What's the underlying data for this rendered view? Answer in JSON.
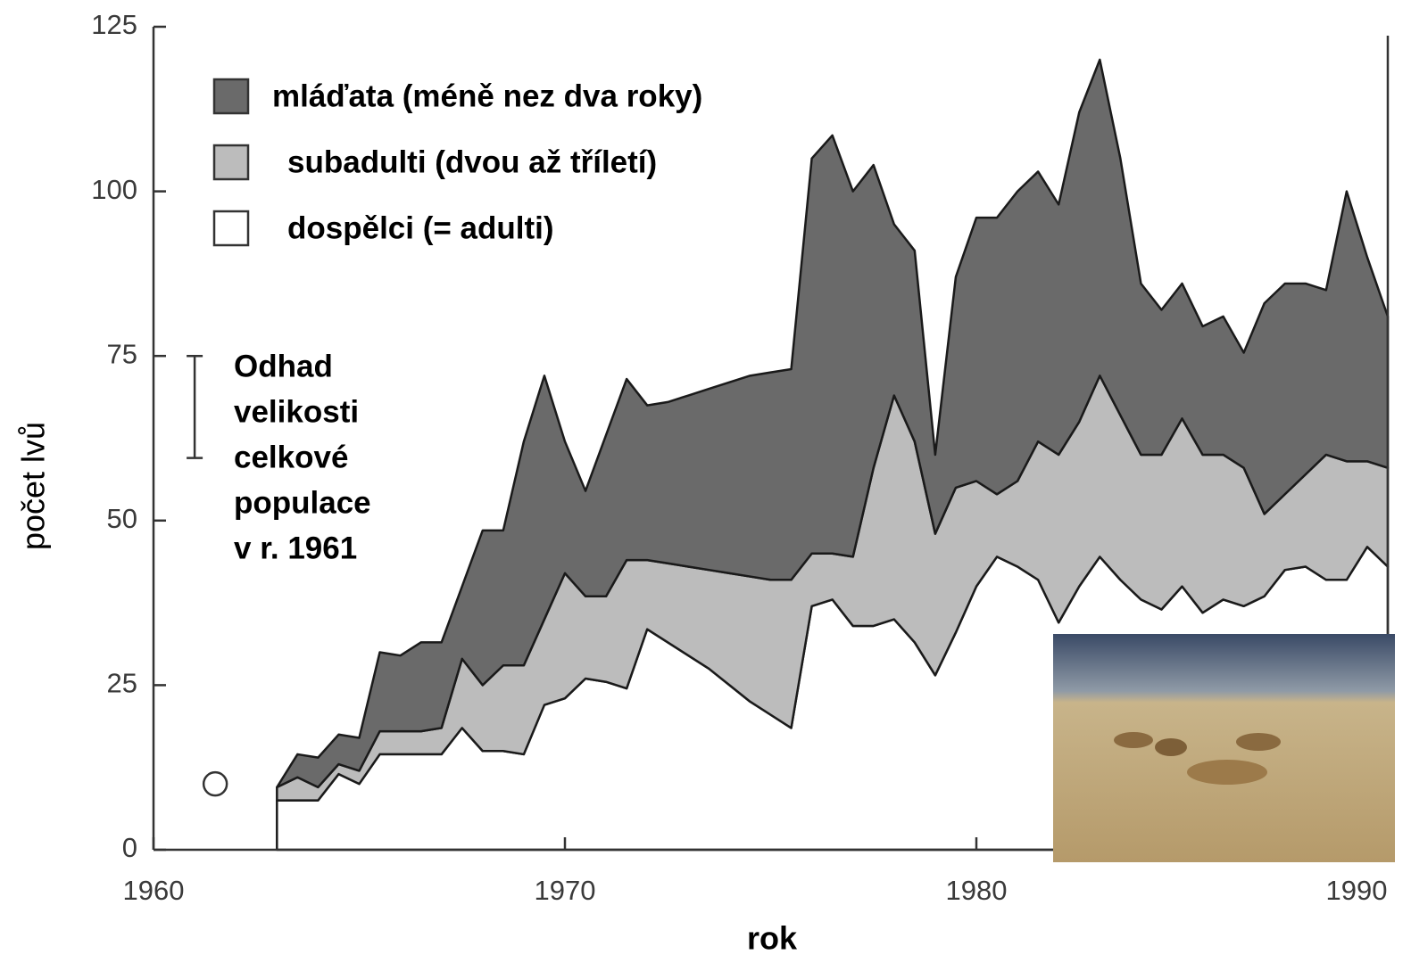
{
  "chart_data": {
    "type": "stacked_area",
    "x_label": "rok",
    "y_label": "počet lvů",
    "xlim": [
      1960,
      1990
    ],
    "ylim": [
      0,
      125
    ],
    "xticks": [
      1960,
      1970,
      1980,
      1990
    ],
    "yticks": [
      0,
      25,
      50,
      75,
      100,
      125
    ],
    "x": [
      1963,
      1963.5,
      1964,
      1964.5,
      1965,
      1965.5,
      1966,
      1966.5,
      1967,
      1967.5,
      1968,
      1968.5,
      1969,
      1969.5,
      1970,
      1970.5,
      1971,
      1971.5,
      1972,
      1972.5,
      1973,
      1973.5,
      1974,
      1974.5,
      1975,
      1975.5,
      1976,
      1976.5,
      1977,
      1977.5,
      1978,
      1978.5,
      1979,
      1979.5,
      1980,
      1980.5,
      1981,
      1981.5,
      1982,
      1982.5,
      1983,
      1983.5,
      1984,
      1984.5,
      1985,
      1985.5,
      1986,
      1986.5,
      1987,
      1987.5,
      1988,
      1988.5,
      1989,
      1989.5,
      1990
    ],
    "series": [
      {
        "name": "dospělci (= adulti)",
        "color": "#ffffff",
        "values": [
          7.5,
          7.5,
          7.5,
          11.5,
          10,
          14.5,
          14.5,
          14.5,
          14.5,
          18.5,
          15,
          15,
          14.5,
          22,
          23,
          26,
          25.5,
          24.5,
          33.5,
          31.5,
          29.5,
          27.5,
          25,
          22.5,
          20.5,
          18.5,
          37,
          38,
          34,
          34,
          35,
          31.5,
          26.5,
          33,
          40,
          44.5,
          43,
          41,
          34.5,
          40,
          44.5,
          41,
          38,
          36.5,
          40,
          36,
          38,
          37,
          38.5,
          42.5,
          43,
          41,
          41,
          46,
          43
        ]
      },
      {
        "name": "subadulti (dvou až tříletí)",
        "color": "#bcbcbc",
        "values": [
          2,
          3.5,
          2,
          1.5,
          2,
          3.5,
          3.5,
          3.5,
          4,
          10.5,
          10,
          13,
          13.5,
          13,
          19,
          12.5,
          13,
          19.5,
          10.5,
          12,
          13.5,
          15,
          17,
          19,
          20.5,
          22.5,
          8,
          7,
          10.5,
          24,
          34,
          30.5,
          21.5,
          22,
          16,
          9.5,
          13,
          21,
          25.5,
          25,
          27.5,
          25,
          22,
          23.5,
          25.5,
          24,
          22,
          21,
          12.5,
          11.5,
          14,
          19,
          18,
          13,
          15
        ]
      },
      {
        "name": "mláďata (méně nez dva roky)",
        "color": "#6a6a6a",
        "values": [
          0,
          3.5,
          4.5,
          4.5,
          5,
          12,
          11.5,
          13.5,
          13,
          11,
          23.5,
          20.5,
          34,
          37,
          20,
          16,
          24.5,
          27.5,
          23.5,
          24.5,
          26,
          27.5,
          29,
          30.5,
          31.5,
          32,
          60,
          63.5,
          55.5,
          46,
          26,
          29,
          12,
          32,
          40,
          42,
          44,
          41,
          38,
          47,
          48,
          39,
          26,
          22,
          20.5,
          19.5,
          21,
          17.5,
          32,
          32,
          29,
          25,
          41,
          31,
          23
        ]
      }
    ],
    "estimate_range": {
      "x": 1961,
      "low": 59.5,
      "high": 75
    },
    "estimate_point": {
      "x": 1961.5,
      "y": 10
    },
    "annotation": {
      "lines": [
        "Odhad",
        "velikosti",
        "celkové",
        "populace",
        "v r. 1961"
      ]
    }
  }
}
